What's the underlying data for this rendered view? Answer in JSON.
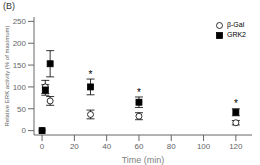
{
  "chart_data": {
    "type": "scatter",
    "title": "(B)",
    "xlabel": "Time (min)",
    "ylabel": "Relative ERK activity (% of maximum)",
    "xlim": [
      -5,
      130
    ],
    "ylim": [
      -10,
      260
    ],
    "xticks": [
      0,
      20,
      40,
      60,
      80,
      100,
      120
    ],
    "yticks": [
      0,
      50,
      100,
      150,
      200,
      250
    ],
    "series": [
      {
        "name": "β-Gal",
        "color": "#000000",
        "marker": "circle_open",
        "x": [
          0,
          2,
          5,
          30,
          60,
          120
        ],
        "values": [
          0,
          100,
          68,
          37,
          33,
          18
        ],
        "error": [
          0,
          15,
          10,
          10,
          8,
          5
        ]
      },
      {
        "name": "GRK2",
        "color": "#000000",
        "marker": "square",
        "x": [
          0,
          2,
          5,
          30,
          60,
          120
        ],
        "values": [
          0,
          93,
          153,
          100,
          65,
          42
        ],
        "error": [
          0,
          12,
          30,
          18,
          12,
          8
        ]
      }
    ],
    "annotations": [
      {
        "text": "*",
        "x": 30,
        "y": 120
      },
      {
        "text": "*",
        "x": 60,
        "y": 80
      },
      {
        "text": "*",
        "x": 120,
        "y": 53
      }
    ],
    "legend": "upper right"
  }
}
